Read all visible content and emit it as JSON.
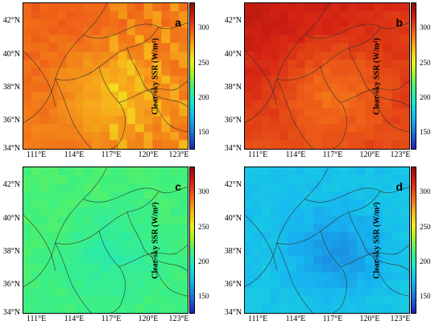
{
  "y_ticks": [
    "42°N",
    "40°N",
    "38°N",
    "36°N",
    "34°N"
  ],
  "x_ticks": [
    "111°E",
    "114°E",
    "117°E",
    "120°E",
    "123°E"
  ],
  "colorbar_ticks": [
    "300",
    "250",
    "200",
    "150"
  ],
  "colorbar_title": "Clear-sky SSR (W/m²)",
  "colorbar_range": [
    130,
    340
  ],
  "colors": {
    "background": "#ffffff",
    "border": "#000000",
    "colormap": [
      "#1e1eb4",
      "#1c6bd6",
      "#17b7f0",
      "#19e6d2",
      "#41f07a",
      "#a8f02b",
      "#eef01d",
      "#f7b21a",
      "#f06318",
      "#d42213",
      "#8c0a0a"
    ]
  },
  "panels": [
    {
      "label": "a",
      "field": {
        "base": 290,
        "center_value": 272,
        "north_value": 300,
        "striped": true
      }
    },
    {
      "label": "b",
      "field": {
        "base": 306,
        "center_value": 288,
        "north_value": 325,
        "striped": false
      }
    },
    {
      "label": "c",
      "field": {
        "base": 213,
        "center_value": 202,
        "north_value": 216,
        "striped": false
      }
    },
    {
      "label": "d",
      "field": {
        "base": 178,
        "center_value": 162,
        "north_value": 176,
        "striped": false
      }
    }
  ]
}
